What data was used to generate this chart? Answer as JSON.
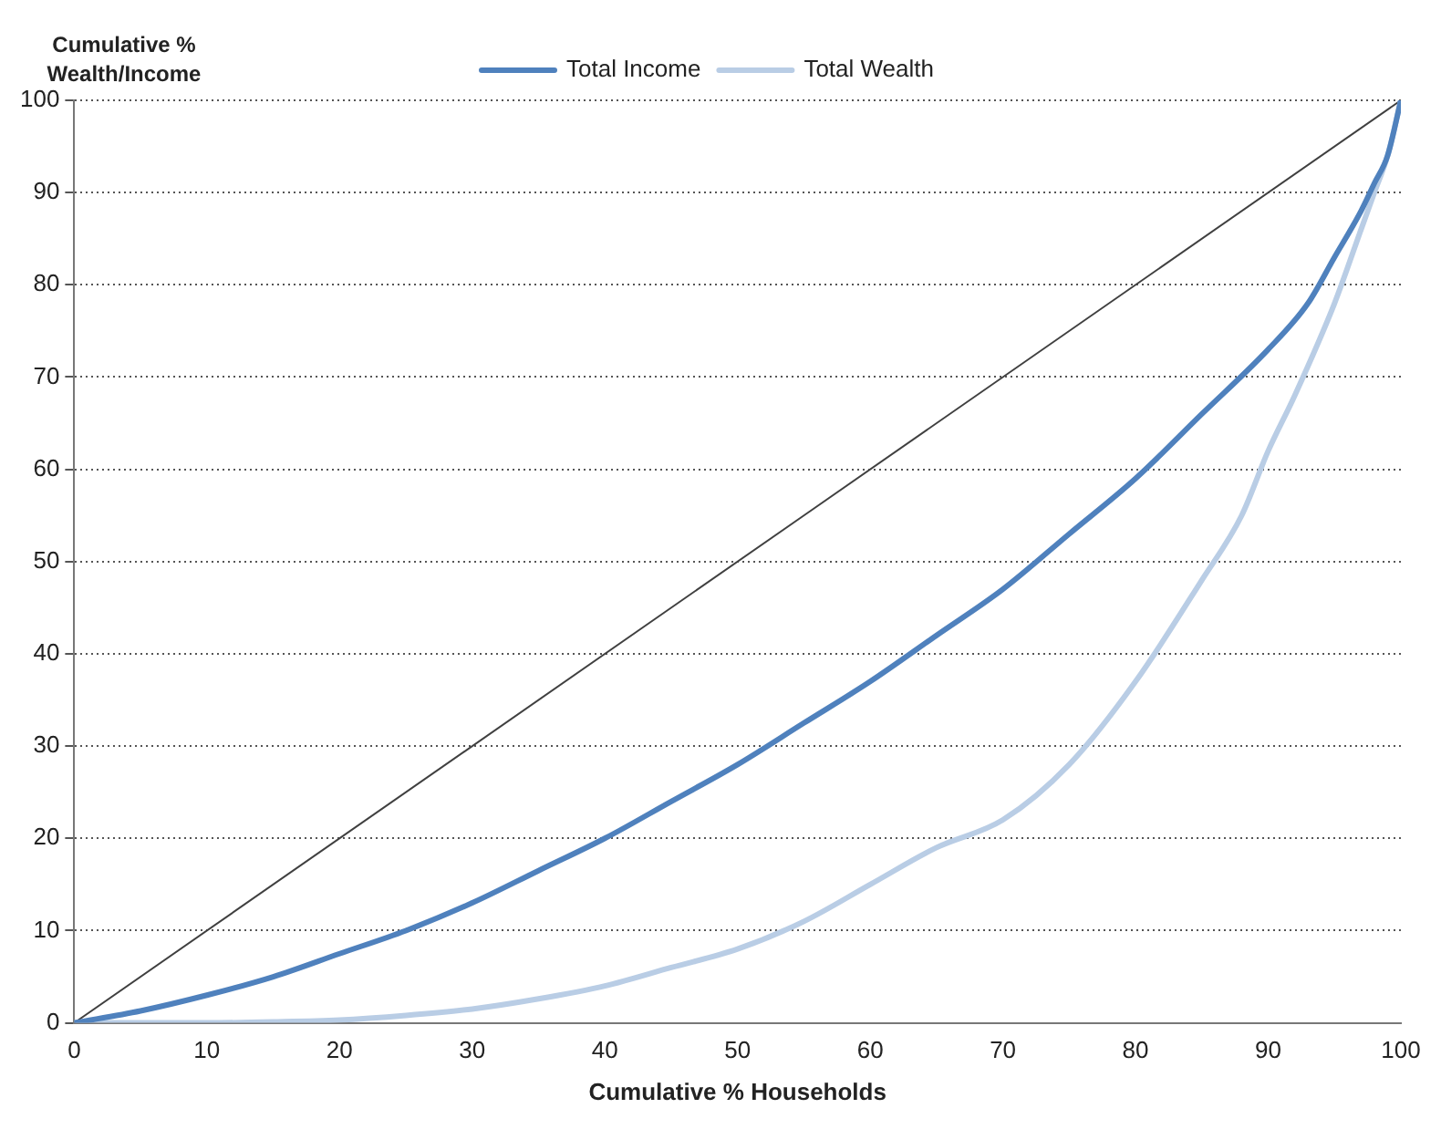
{
  "chart_data": {
    "type": "line",
    "xlabel": "Cumulative % Households",
    "ylabel": "Cumulative % Wealth/Income",
    "xlim": [
      0,
      100
    ],
    "ylim": [
      0,
      100
    ],
    "xticks": [
      0,
      10,
      20,
      30,
      40,
      50,
      60,
      70,
      80,
      90,
      100
    ],
    "yticks": [
      0,
      10,
      20,
      30,
      40,
      50,
      60,
      70,
      80,
      90,
      100
    ],
    "grid": "y",
    "legend": "top",
    "marker": "none",
    "line_style": "solid",
    "series": [
      {
        "name": "Total Income",
        "color": "#4f81bd",
        "x": [
          0,
          5,
          10,
          15,
          20,
          25,
          30,
          35,
          40,
          45,
          50,
          55,
          60,
          65,
          70,
          75,
          80,
          85,
          90,
          93,
          95,
          97,
          98,
          99,
          100
        ],
        "values": [
          0,
          1.3,
          3,
          5,
          7.5,
          10,
          13,
          16.5,
          20,
          24,
          28,
          32.5,
          37,
          42,
          47,
          53,
          59,
          66,
          73,
          78,
          83,
          88,
          91,
          94,
          100
        ]
      },
      {
        "name": "Total Wealth",
        "color": "#b9cde5",
        "x": [
          0,
          10,
          15,
          20,
          25,
          30,
          35,
          40,
          45,
          50,
          55,
          60,
          65,
          70,
          75,
          80,
          85,
          88,
          90,
          92,
          95,
          97,
          98,
          99,
          100
        ],
        "values": [
          0,
          0,
          0.1,
          0.3,
          0.8,
          1.5,
          2.6,
          4,
          6,
          8,
          11,
          15,
          19,
          22,
          28,
          37,
          48,
          55,
          62,
          68,
          78,
          86,
          90,
          94,
          100
        ]
      },
      {
        "color": "#404040",
        "x": [
          0,
          100
        ],
        "values": [
          0,
          100
        ]
      }
    ]
  }
}
